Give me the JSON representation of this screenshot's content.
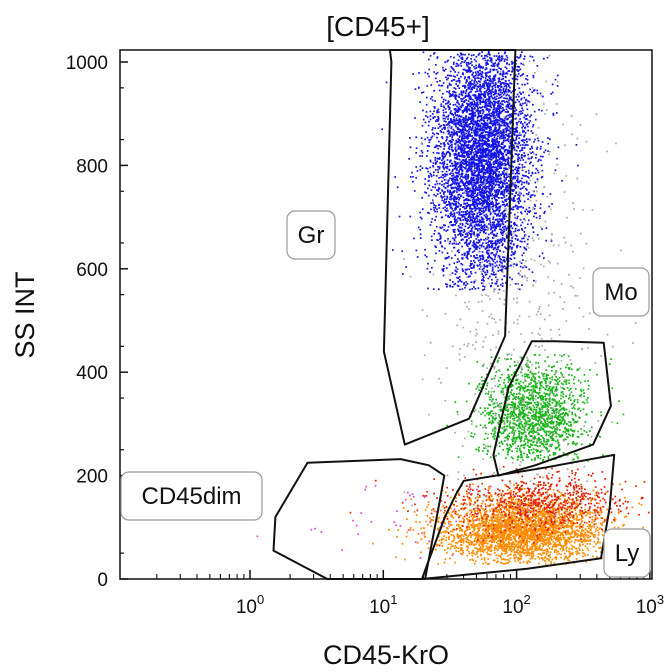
{
  "chart_data": {
    "type": "scatter",
    "title": "[CD45+]",
    "xlabel": "CD45-KrO",
    "ylabel": "SS INT",
    "x_scale": "log",
    "xlim": [
      0.1,
      1000
    ],
    "ylim": [
      0,
      1024
    ],
    "x_ticks": [
      {
        "value": 1,
        "base": "10",
        "exp": "0"
      },
      {
        "value": 10,
        "base": "10",
        "exp": "1"
      },
      {
        "value": 100,
        "base": "10",
        "exp": "2"
      },
      {
        "value": 1000,
        "base": "10",
        "exp": "3"
      }
    ],
    "y_ticks": [
      0,
      200,
      400,
      600,
      800,
      1000
    ],
    "grid": false,
    "gates": [
      {
        "name": "Gr",
        "polygon": [
          [
            11.2,
            1024
          ],
          [
            40.2,
            1024
          ],
          [
            84.5,
            1024
          ],
          [
            98,
            1024
          ],
          [
            82,
            470
          ],
          [
            44,
            310
          ],
          [
            14.5,
            260
          ],
          [
            10.1,
            440
          ],
          [
            11.5,
            1000
          ]
        ]
      },
      {
        "name": "Mo",
        "polygon": [
          [
            130,
            460
          ],
          [
            195,
            460
          ],
          [
            450,
            457
          ],
          [
            510,
            335
          ],
          [
            375,
            260
          ],
          [
            138,
            220
          ],
          [
            73,
            200
          ],
          [
            67,
            240
          ],
          [
            87,
            370
          ]
        ]
      },
      {
        "name": "Ly",
        "polygon": [
          [
            40.2,
            190
          ],
          [
            160,
            215
          ],
          [
            540,
            240
          ],
          [
            500,
            140
          ],
          [
            430,
            40
          ],
          [
            120,
            20
          ],
          [
            19.5,
            0
          ],
          [
            21.5,
            30
          ],
          [
            29,
            120
          ],
          [
            35.3,
            165
          ]
        ]
      },
      {
        "name": "CD45dim",
        "polygon": [
          [
            2.7,
            225
          ],
          [
            13.5,
            232
          ],
          [
            22,
            220
          ],
          [
            28.7,
            200
          ],
          [
            26.5,
            150
          ],
          [
            20.6,
            0
          ],
          [
            3.8,
            0
          ],
          [
            1.5,
            55
          ],
          [
            1.55,
            120
          ]
        ]
      }
    ],
    "series": [
      {
        "color": "#1414e6",
        "population": "Gr",
        "count": 5200,
        "x_center": 55,
        "x_spread": 0.085,
        "y_center": 815,
        "y_spread": 120,
        "y_min": 560,
        "y_max": 1024
      },
      {
        "color": "#18b418",
        "population": "Mo",
        "count": 1500,
        "x_center": 135,
        "x_spread": 0.09,
        "y_center": 320,
        "y_spread": 50,
        "y_min": 230,
        "y_max": 440
      },
      {
        "color": "#ff8c00",
        "population": "Ly",
        "count": 2800,
        "x_center": 110,
        "x_spread": 0.14,
        "y_center": 95,
        "y_spread": 32,
        "y_min": 30,
        "y_max": 185
      },
      {
        "color": "#e61e00",
        "population": "Ly",
        "count": 700,
        "x_center": 140,
        "x_spread": 0.16,
        "y_center": 150,
        "y_spread": 28,
        "y_min": 60,
        "y_max": 220
      },
      {
        "color": "#aaaaaa",
        "population": "ungated",
        "count": 500,
        "x_center": 110,
        "x_spread": 0.14,
        "y_center": 470,
        "y_spread": 240,
        "y_min": 100,
        "y_max": 1024
      },
      {
        "color": "#e24bd0",
        "population": "CD45dim",
        "count": 40,
        "x_center": 14,
        "x_spread": 0.16,
        "y_center": 110,
        "y_spread": 45,
        "y_min": 40,
        "y_max": 200
      }
    ]
  }
}
